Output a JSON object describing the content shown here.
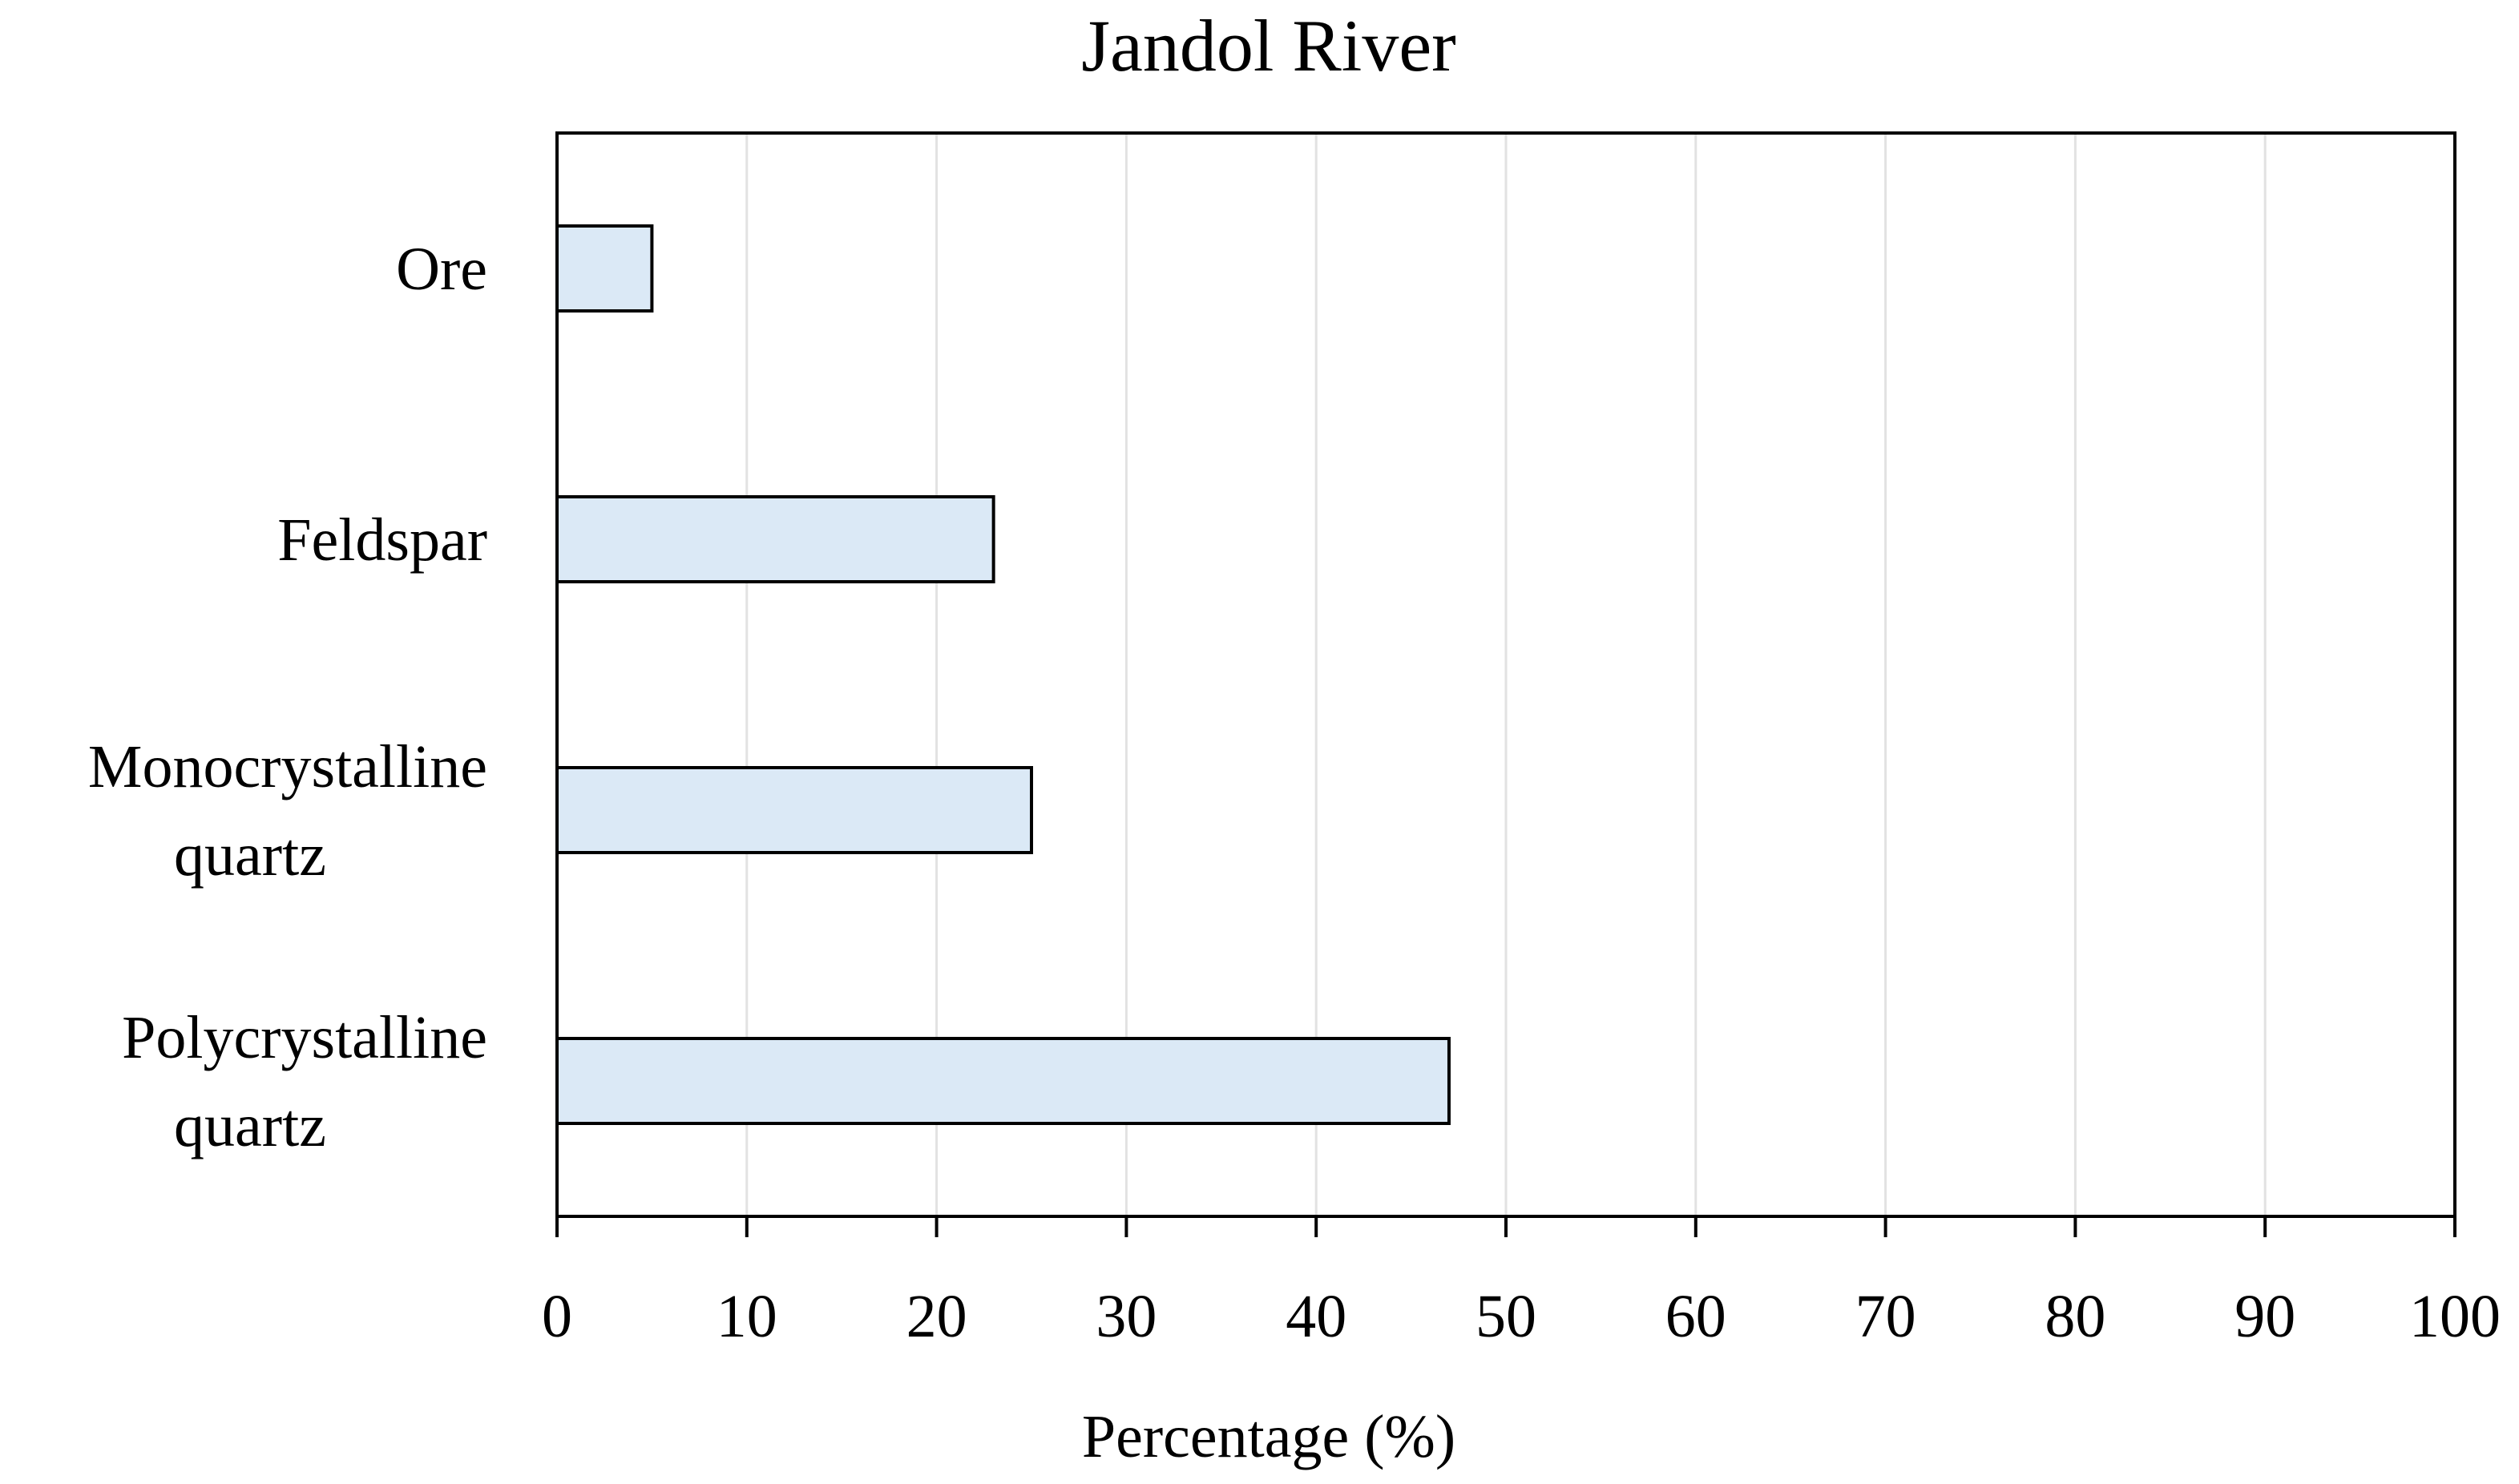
{
  "chart_data": {
    "type": "bar",
    "orientation": "horizontal",
    "title": "Jandol River",
    "xlabel": "Percentage (%)",
    "ylabel": "",
    "xlim": [
      0,
      100
    ],
    "xticks": [
      0,
      10,
      20,
      30,
      40,
      50,
      60,
      70,
      80,
      90,
      100
    ],
    "categories": [
      [
        "Ore"
      ],
      [
        "Feldspar"
      ],
      [
        "Monocrystalline",
        "quartz"
      ],
      [
        "Polycrystalline",
        "quartz"
      ]
    ],
    "values": [
      5,
      23,
      25,
      47
    ],
    "grid": "vertical",
    "legend": "none",
    "bar_fill": "#dbe9f6",
    "bar_stroke": "#000000",
    "grid_color": "#e2e2e2"
  }
}
